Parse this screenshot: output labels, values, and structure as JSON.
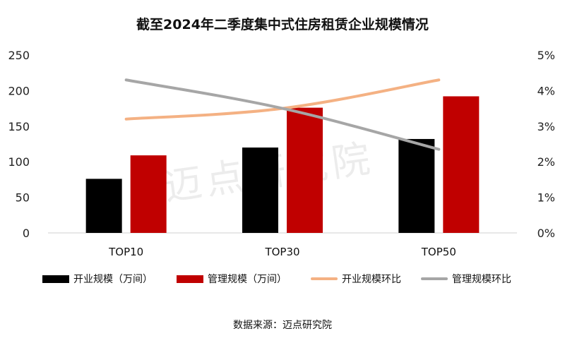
{
  "chart_data": {
    "type": "bar",
    "title": "截至2024年二季度集中式住房租赁企业规模情况",
    "categories": [
      "TOP10",
      "TOP30",
      "TOP50"
    ],
    "series": [
      {
        "name": "开业规模（万间）",
        "type": "bar",
        "axis": "left",
        "values": [
          76,
          120,
          132
        ],
        "color": "#000000"
      },
      {
        "name": "管理规模（万间）",
        "type": "bar",
        "axis": "left",
        "values": [
          109,
          176,
          192
        ],
        "color": "#c00000"
      },
      {
        "name": "开业规模环比",
        "type": "line",
        "axis": "right",
        "values": [
          3.2,
          3.5,
          4.3
        ],
        "color": "#f4b183"
      },
      {
        "name": "管理规模环比",
        "type": "line",
        "axis": "right",
        "values": [
          4.3,
          3.5,
          2.35
        ],
        "color": "#a6a6a6"
      }
    ],
    "y_left": {
      "min": 0,
      "max": 250,
      "ticks": [
        "0",
        "50",
        "100",
        "150",
        "200",
        "250"
      ]
    },
    "y_right": {
      "min": 0,
      "max": 5,
      "ticks": [
        "0%",
        "1%",
        "2%",
        "3%",
        "4%",
        "5%"
      ]
    },
    "grid": false,
    "legend_position": "bottom"
  },
  "watermark": "迈点研究院",
  "source_note": "数据来源：迈点研究院"
}
